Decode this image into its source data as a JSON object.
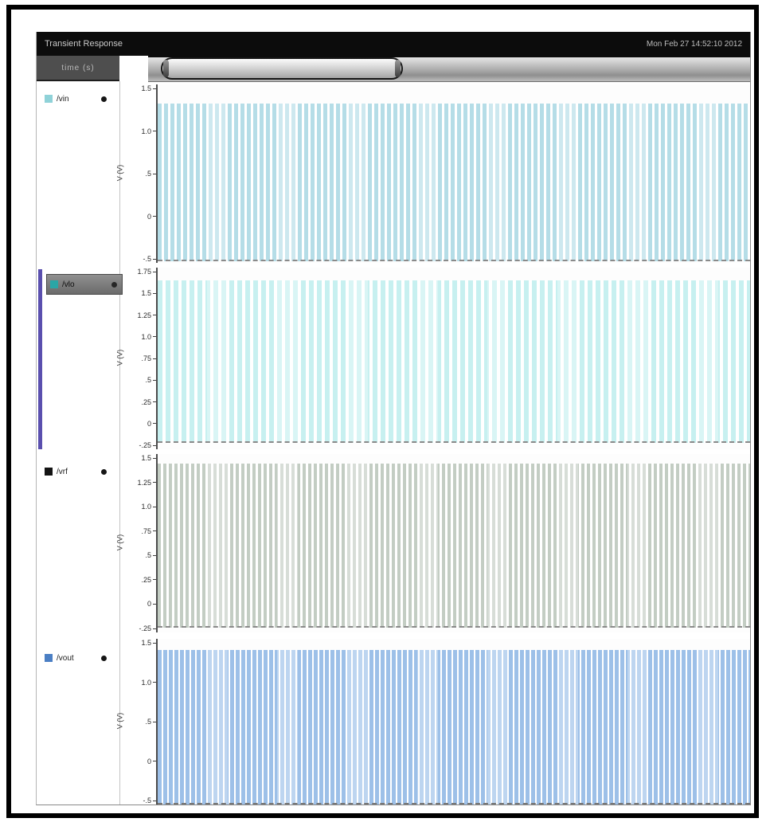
{
  "window": {
    "title": "Transient Response",
    "datetime": "Mon Feb 27 14:52:10 2012"
  },
  "toolbar": {
    "readout": "time (s)"
  },
  "signals": [
    {
      "label": "/vin",
      "color": "#8fd2d8",
      "selected": false
    },
    {
      "label": "/vlo",
      "color": "#2ba6a6",
      "selected": true
    },
    {
      "label": "/vrf",
      "color": "#141414",
      "selected": false
    },
    {
      "label": "/vout",
      "color": "#4b7fc4",
      "selected": false
    }
  ],
  "panels": [
    {
      "ylabel": "V (V)",
      "stripe_color": "#b5dde7",
      "ticks": [
        "1.5",
        "1.0",
        ".5",
        "0",
        "-.5"
      ]
    },
    {
      "ylabel": "V (V)",
      "stripe_color": "#c7f0f0",
      "ticks": [
        "1.75",
        "1.5",
        "1.25",
        "1.0",
        ".75",
        ".5",
        ".25",
        "0",
        "-.25"
      ]
    },
    {
      "ylabel": "V (V)",
      "stripe_color": "#c3cdc3",
      "ticks": [
        "1.5",
        "1.25",
        "1.0",
        ".75",
        ".5",
        ".25",
        "0",
        "-.25"
      ]
    },
    {
      "ylabel": "V (V)",
      "stripe_color": "#9dc0e8",
      "ticks": [
        "1.5",
        "1.0",
        ".5",
        "0",
        "-.5"
      ]
    }
  ],
  "accent_colors": {
    "selection_bar": "#5a4fae",
    "titlebar_bg": "#0c0c0c"
  }
}
